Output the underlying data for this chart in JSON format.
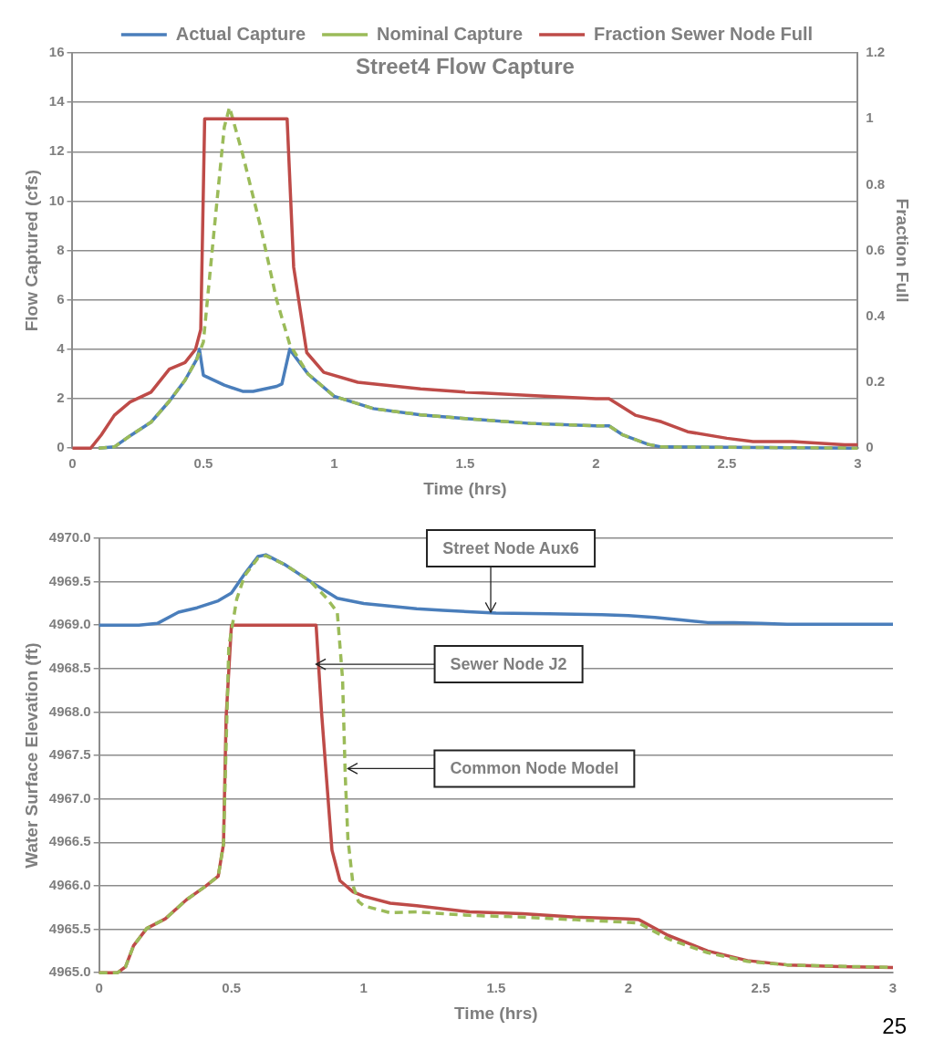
{
  "chart_data": [
    {
      "type": "line",
      "title": "Street4 Flow Capture",
      "xlabel": "Time (hrs)",
      "ylabel": "Flow Captured (cfs)",
      "y2label": "Fraction Full",
      "xlim": [
        0,
        3
      ],
      "xticks": [
        0,
        0.5,
        1,
        1.5,
        2,
        2.5,
        3
      ],
      "ylim": [
        0,
        16
      ],
      "yticks": [
        0,
        2,
        4,
        6,
        8,
        10,
        12,
        14,
        16
      ],
      "y2lim": [
        0,
        1.2
      ],
      "y2ticks": [
        0,
        0.2,
        0.4,
        0.6,
        0.8,
        1,
        1.2
      ],
      "grid": "y",
      "legend": "top",
      "marker": "none",
      "series": [
        {
          "name": "Actual Capture",
          "color": "#4a7ebb",
          "line_style": "solid",
          "x": [
            0.1,
            0.16,
            0.22,
            0.3,
            0.37,
            0.43,
            0.475,
            0.485,
            0.5,
            0.58,
            0.65,
            0.69,
            0.78,
            0.8,
            0.83,
            0.9,
            1.0,
            1.15,
            1.33,
            1.5,
            1.75,
            2.0,
            2.05,
            2.1,
            2.2,
            2.25,
            3
          ],
          "values": [
            0,
            0.05,
            0.5,
            1.05,
            1.9,
            2.75,
            3.6,
            4.0,
            2.95,
            2.55,
            2.3,
            2.3,
            2.5,
            2.6,
            4.0,
            3.0,
            2.1,
            1.6,
            1.35,
            1.2,
            1.0,
            0.9,
            0.9,
            0.55,
            0.15,
            0.05,
            0
          ]
        },
        {
          "name": "Nominal Capture",
          "color": "#9bbb59",
          "line_style": "dashed",
          "x": [
            0.1,
            0.16,
            0.22,
            0.3,
            0.37,
            0.43,
            0.475,
            0.5,
            0.54,
            0.58,
            0.6,
            0.65,
            0.72,
            0.78,
            0.83,
            0.9,
            1.0,
            1.15,
            1.33,
            1.5,
            1.75,
            2.0,
            2.05,
            2.1,
            2.2,
            2.25,
            3
          ],
          "values": [
            0,
            0.05,
            0.5,
            1.05,
            1.9,
            2.75,
            3.6,
            4.3,
            8.7,
            13.0,
            13.8,
            11.9,
            8.9,
            6.0,
            4.2,
            3.0,
            2.1,
            1.6,
            1.35,
            1.2,
            1.0,
            0.9,
            0.9,
            0.55,
            0.15,
            0.05,
            0
          ]
        },
        {
          "name": "Fraction Sewer Node Full",
          "color": "#be4b48",
          "line_style": "solid",
          "axis": "y2",
          "x": [
            0,
            0.07,
            0.11,
            0.16,
            0.22,
            0.3,
            0.37,
            0.43,
            0.47,
            0.49,
            0.505,
            0.82,
            0.845,
            0.895,
            0.96,
            1.09,
            1.33,
            1.5,
            1.75,
            2.0,
            2.05,
            2.15,
            2.25,
            2.35,
            2.5,
            2.6,
            2.75,
            2.95,
            3
          ],
          "values": [
            0,
            0,
            0.04,
            0.1,
            0.14,
            0.17,
            0.24,
            0.26,
            0.3,
            0.36,
            1,
            1,
            0.55,
            0.29,
            0.23,
            0.2,
            0.18,
            0.17,
            0.16,
            0.15,
            0.15,
            0.1,
            0.08,
            0.05,
            0.03,
            0.02,
            0.02,
            0.01,
            0.01
          ]
        }
      ]
    },
    {
      "type": "line",
      "xlabel": "Time (hrs)",
      "ylabel": "Water Surface Elevation (ft)",
      "xlim": [
        0,
        3
      ],
      "xticks": [
        0,
        0.5,
        1,
        1.5,
        2,
        2.5,
        3
      ],
      "ylim": [
        4965,
        4970
      ],
      "yticks": [
        {
          "value": 4965,
          "label": "4965.0"
        },
        {
          "value": 4965.5,
          "label": "4965.5"
        },
        {
          "value": 4966,
          "label": "4966.0"
        },
        {
          "value": 4966.5,
          "label": "4966.5"
        },
        {
          "value": 4967,
          "label": "4967.0"
        },
        {
          "value": 4967.5,
          "label": "4967.5"
        },
        {
          "value": 4968,
          "label": "4968.0"
        },
        {
          "value": 4968.5,
          "label": "4968.5"
        },
        {
          "value": 4969,
          "label": "4969.0"
        },
        {
          "value": 4969.5,
          "label": "4969.5"
        },
        {
          "value": 4970,
          "label": "4970.0"
        }
      ],
      "grid": "y",
      "marker": "none",
      "annotations": [
        {
          "text": "Street Node Aux6",
          "x": 1.48,
          "y": 4969.15
        },
        {
          "text": "Sewer Node J2",
          "x": 0.82,
          "y": 4968.55
        },
        {
          "text": "Common Node Model",
          "x": 0.94,
          "y": 4967.35
        },
        "25"
      ],
      "series": [
        {
          "color": "#4a7ebb",
          "line_style": "solid",
          "x": [
            0,
            0.15,
            0.22,
            0.3,
            0.37,
            0.45,
            0.5,
            0.55,
            0.6,
            0.63,
            0.7,
            0.8,
            0.9,
            1.0,
            1.2,
            1.3,
            1.5,
            1.7,
            1.9,
            2.0,
            2.1,
            2.2,
            2.3,
            2.4,
            2.5,
            2.6,
            3
          ],
          "values": [
            4969,
            4969,
            4969.02,
            4969.15,
            4969.2,
            4969.28,
            4969.37,
            4969.59,
            4969.79,
            4969.81,
            4969.7,
            4969.5,
            4969.31,
            4969.25,
            4969.19,
            4969.17,
            4969.14,
            4969.13,
            4969.12,
            4969.11,
            4969.09,
            4969.06,
            4969.03,
            4969.03,
            4969.02,
            4969.01,
            4969.01
          ]
        },
        {
          "color": "#be4b48",
          "line_style": "solid",
          "x": [
            0,
            0.07,
            0.1,
            0.13,
            0.18,
            0.25,
            0.33,
            0.4,
            0.45,
            0.47,
            0.48,
            0.5,
            0.82,
            0.84,
            0.86,
            0.88,
            0.91,
            0.96,
            1.0,
            1.1,
            1.2,
            1.4,
            1.6,
            1.8,
            2.0,
            2.04,
            2.15,
            2.3,
            2.45,
            2.6,
            2.8,
            3
          ],
          "values": [
            4965,
            4965,
            4965.07,
            4965.31,
            4965.51,
            4965.62,
            4965.84,
            4965.99,
            4966.11,
            4966.48,
            4967.94,
            4969,
            4969,
            4968.02,
            4967.21,
            4966.41,
            4966.06,
            4965.93,
            4965.88,
            4965.8,
            4965.77,
            4965.7,
            4965.68,
            4965.64,
            4965.62,
            4965.61,
            4965.43,
            4965.25,
            4965.14,
            4965.09,
            4965.07,
            4965.06
          ]
        },
        {
          "color": "#9bbb59",
          "line_style": "dashed",
          "x": [
            0,
            0.07,
            0.1,
            0.13,
            0.18,
            0.25,
            0.33,
            0.4,
            0.45,
            0.47,
            0.49,
            0.52,
            0.55,
            0.6,
            0.63,
            0.7,
            0.8,
            0.86,
            0.9,
            0.92,
            0.93,
            0.94,
            0.96,
            0.98,
            1.0,
            1.1,
            1.2,
            1.4,
            1.6,
            1.8,
            2.0,
            2.04,
            2.15,
            2.3,
            2.45,
            2.6,
            3
          ],
          "values": [
            4965,
            4965,
            4965.07,
            4965.31,
            4965.51,
            4965.62,
            4965.84,
            4965.99,
            4966.11,
            4966.48,
            4968.75,
            4969.3,
            4969.57,
            4969.77,
            4969.8,
            4969.7,
            4969.5,
            4969.31,
            4969.15,
            4968.38,
            4967.28,
            4966.55,
            4966,
            4965.82,
            4965.77,
            4965.69,
            4965.7,
            4965.66,
            4965.64,
            4965.61,
            4965.58,
            4965.57,
            4965.39,
            4965.23,
            4965.13,
            4965.09,
            4965.06
          ]
        }
      ]
    }
  ]
}
